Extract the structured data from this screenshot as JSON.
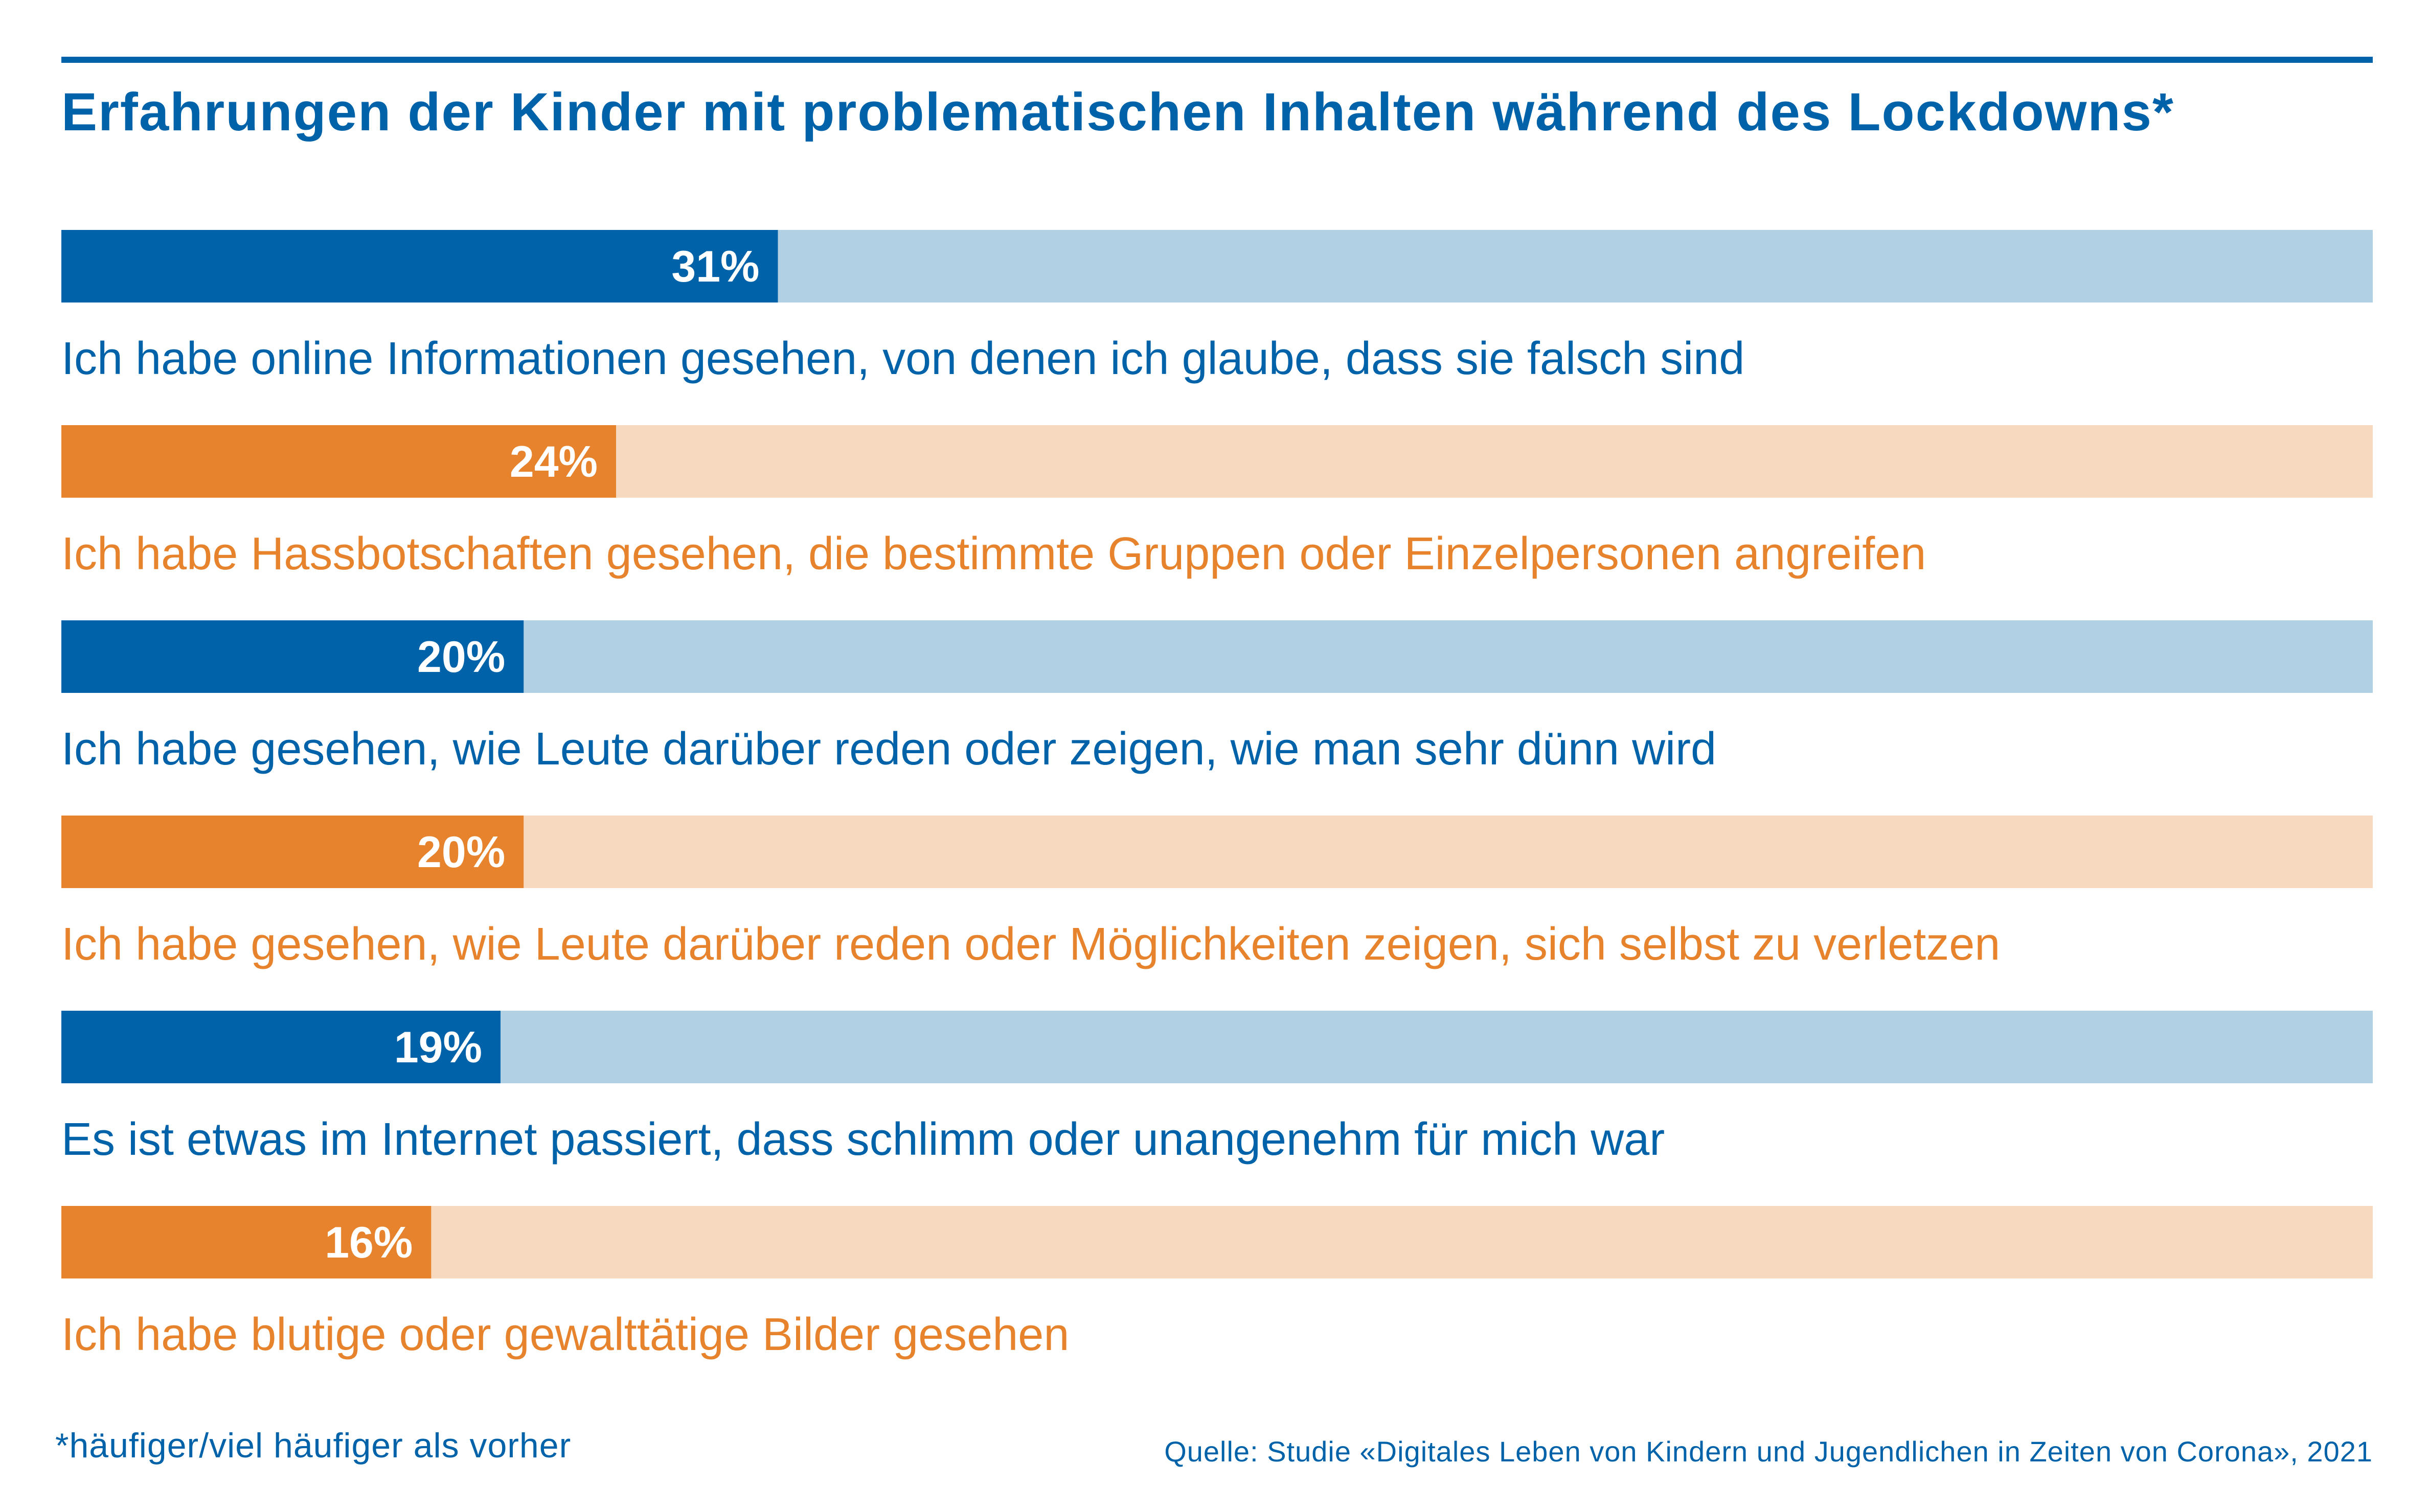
{
  "title": "Erfahrungen der Kinder mit problematischen Inhalten während des Lockdowns*",
  "footnote": "*häufiger/viel häufiger als vorher",
  "source": "Quelle: Studie «Digitales Leben von Kindern und Jugendlichen in Zeiten von Corona», 2021",
  "colors": {
    "blue": "#0062a8",
    "blue_light": "#b2d0e3",
    "orange": "#e6832c",
    "orange_light": "#f7d9c0"
  },
  "chart_data": {
    "type": "bar",
    "orientation": "horizontal",
    "xlim": [
      0,
      100
    ],
    "grid": false,
    "categories": [
      "Ich habe online Informationen gesehen, von denen ich glaube, dass sie falsch sind",
      "Ich habe Hassbotschaften gesehen, die bestimmte Gruppen oder Einzelpersonen angreifen",
      "Ich habe gesehen, wie Leute darüber reden oder zeigen, wie man sehr dünn wird",
      "Ich habe gesehen, wie Leute darüber reden oder Möglichkeiten zeigen, sich selbst zu verletzen",
      "Es ist etwas im Internet passiert, dass schlimm oder unangenehm für mich war",
      "Ich habe blutige oder gewalttätige Bilder gesehen"
    ],
    "values": [
      31,
      24,
      20,
      20,
      19,
      16
    ],
    "value_labels": [
      "31%",
      "24%",
      "20%",
      "20%",
      "19%",
      "16%"
    ],
    "bar_colors": [
      "blue",
      "orange",
      "blue",
      "orange",
      "blue",
      "orange"
    ]
  }
}
